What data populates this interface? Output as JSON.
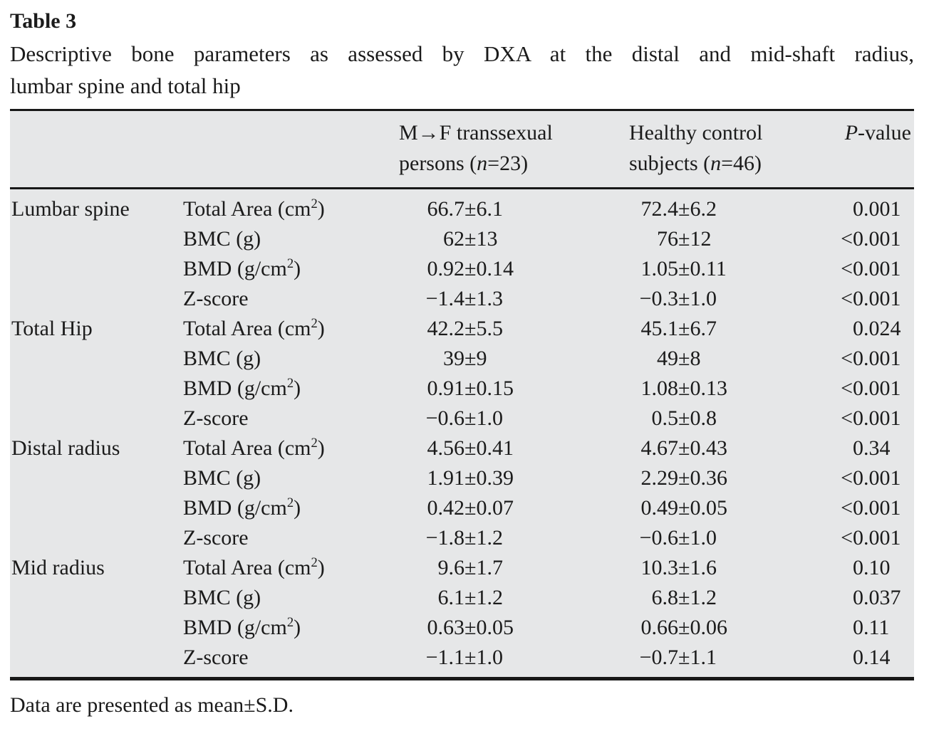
{
  "symbols": {
    "plus_minus": "±"
  },
  "colors": {
    "table_background": "#e6e7e8",
    "rule_color": "#181818",
    "text_color": "#1b1b1b"
  },
  "title": "Table 3",
  "caption": {
    "line1": "Descriptive bone parameters as assessed by DXA at the distal and mid-shaft radius,",
    "line2": "lumbar spine and total hip"
  },
  "footnote": "Data are presented as mean±S.D.",
  "table": {
    "columns": {
      "region": {
        "label": ""
      },
      "parameter": {
        "label": ""
      },
      "group1": {
        "line1": "M→F transsexual",
        "line2_pre": "persons (",
        "line2_italic": "n",
        "line2_post": "=23)"
      },
      "group2": {
        "line1": "Healthy control",
        "line2_pre": "subjects (",
        "line2_italic": "n",
        "line2_post": "=46)"
      },
      "pvalue": {
        "italic": "P",
        "rest": "-value"
      }
    },
    "rows": [
      {
        "region": "Lumbar spine",
        "param_pre": "Total Area (cm",
        "param_sup": "2",
        "param_post": ")",
        "mf_mean": "66.7",
        "mf_sd": "6.1",
        "hc_mean": "72.4",
        "hc_sd": "6.2",
        "p_prefix": "",
        "p_value": "0.001"
      },
      {
        "region": "",
        "param_pre": "BMC (g)",
        "param_sup": "",
        "param_post": "",
        "mf_mean": "62",
        "mf_sd": "13",
        "hc_mean": "76",
        "hc_sd": "12",
        "p_prefix": "<",
        "p_value": "0.001"
      },
      {
        "region": "",
        "param_pre": "BMD (g/cm",
        "param_sup": "2",
        "param_post": ")",
        "mf_mean": "0.92",
        "mf_sd": "0.14",
        "hc_mean": "1.05",
        "hc_sd": "0.11",
        "p_prefix": "<",
        "p_value": "0.001"
      },
      {
        "region": "",
        "param_pre": "Z-score",
        "param_sup": "",
        "param_post": "",
        "mf_mean": "−1.4",
        "mf_sd": "1.3",
        "hc_mean": "−0.3",
        "hc_sd": "1.0",
        "p_prefix": "<",
        "p_value": "0.001"
      },
      {
        "region": "Total Hip",
        "param_pre": "Total Area (cm",
        "param_sup": "2",
        "param_post": ")",
        "mf_mean": "42.2",
        "mf_sd": "5.5",
        "hc_mean": "45.1",
        "hc_sd": "6.7",
        "p_prefix": "",
        "p_value": "0.024"
      },
      {
        "region": "",
        "param_pre": "BMC (g)",
        "param_sup": "",
        "param_post": "",
        "mf_mean": "39",
        "mf_sd": "9",
        "hc_mean": "49",
        "hc_sd": "8",
        "p_prefix": "<",
        "p_value": "0.001"
      },
      {
        "region": "",
        "param_pre": "BMD (g/cm",
        "param_sup": "2",
        "param_post": ")",
        "mf_mean": "0.91",
        "mf_sd": "0.15",
        "hc_mean": "1.08",
        "hc_sd": "0.13",
        "p_prefix": "<",
        "p_value": "0.001"
      },
      {
        "region": "",
        "param_pre": "Z-score",
        "param_sup": "",
        "param_post": "",
        "mf_mean": "−0.6",
        "mf_sd": "1.0",
        "hc_mean": "0.5",
        "hc_sd": "0.8",
        "p_prefix": "<",
        "p_value": "0.001"
      },
      {
        "region": "Distal radius",
        "param_pre": "Total Area (cm",
        "param_sup": "2",
        "param_post": ")",
        "mf_mean": "4.56",
        "mf_sd": "0.41",
        "hc_mean": "4.67",
        "hc_sd": "0.43",
        "p_prefix": "",
        "p_value": "0.34"
      },
      {
        "region": "",
        "param_pre": "BMC (g)",
        "param_sup": "",
        "param_post": "",
        "mf_mean": "1.91",
        "mf_sd": "0.39",
        "hc_mean": "2.29",
        "hc_sd": "0.36",
        "p_prefix": "<",
        "p_value": "0.001"
      },
      {
        "region": "",
        "param_pre": "BMD (g/cm",
        "param_sup": "2",
        "param_post": ")",
        "mf_mean": "0.42",
        "mf_sd": "0.07",
        "hc_mean": "0.49",
        "hc_sd": "0.05",
        "p_prefix": "<",
        "p_value": "0.001"
      },
      {
        "region": "",
        "param_pre": "Z-score",
        "param_sup": "",
        "param_post": "",
        "mf_mean": "−1.8",
        "mf_sd": "1.2",
        "hc_mean": "−0.6",
        "hc_sd": "1.0",
        "p_prefix": "<",
        "p_value": "0.001"
      },
      {
        "region": "Mid radius",
        "param_pre": "Total Area (cm",
        "param_sup": "2",
        "param_post": ")",
        "mf_mean": "9.6",
        "mf_sd": "1.7",
        "hc_mean": "10.3",
        "hc_sd": "1.6",
        "p_prefix": "",
        "p_value": "0.10"
      },
      {
        "region": "",
        "param_pre": "BMC (g)",
        "param_sup": "",
        "param_post": "",
        "mf_mean": "6.1",
        "mf_sd": "1.2",
        "hc_mean": "6.8",
        "hc_sd": "1.2",
        "p_prefix": "",
        "p_value": "0.037"
      },
      {
        "region": "",
        "param_pre": "BMD (g/cm",
        "param_sup": "2",
        "param_post": ")",
        "mf_mean": "0.63",
        "mf_sd": "0.05",
        "hc_mean": "0.66",
        "hc_sd": "0.06",
        "p_prefix": "",
        "p_value": "0.11"
      },
      {
        "region": "",
        "param_pre": "Z-score",
        "param_sup": "",
        "param_post": "",
        "mf_mean": "−1.1",
        "mf_sd": "1.0",
        "hc_mean": "−0.7",
        "hc_sd": "1.1",
        "p_prefix": "",
        "p_value": "0.14"
      }
    ]
  }
}
